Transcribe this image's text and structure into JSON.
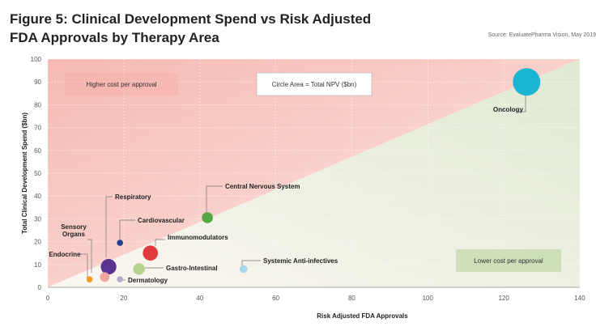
{
  "figure": {
    "title_line1": "Figure 5: Clinical Development Spend vs Risk Adjusted",
    "title_line2": "FDA Approvals by Therapy Area",
    "source": "Source: EvaluatePharma Vision, May 2019"
  },
  "chart_data": {
    "type": "scatter",
    "title": "Figure 5: Clinical Development Spend vs Risk Adjusted FDA Approvals by Therapy Area",
    "xlabel": "Risk Adjusted FDA Approvals",
    "ylabel": "Total Clinical Development Spend ($bn)",
    "xlim": [
      0,
      140
    ],
    "ylim": [
      0,
      100
    ],
    "x_ticks": [
      0,
      20,
      40,
      60,
      80,
      100,
      120,
      140
    ],
    "y_ticks": [
      0,
      10,
      20,
      30,
      40,
      50,
      60,
      70,
      80,
      90,
      100
    ],
    "size_note": "Circle Area = Total NPV ($bn)",
    "region_labels": {
      "upper_left": "Higher cost per approval",
      "lower_right": "Lower cost per approval"
    },
    "colors": {
      "upper_region": "#f8c9c4",
      "lower_region": "#e3ecd8"
    },
    "points": [
      {
        "label": "Oncology",
        "x": 126,
        "y": 90,
        "npv": 250,
        "color": "#1ab5d3"
      },
      {
        "label": "Central Nervous System",
        "x": 42,
        "y": 30.5,
        "npv": 40,
        "color": "#56a845"
      },
      {
        "label": "Respiratory",
        "x": 16,
        "y": 9,
        "npv": 80,
        "color": "#5b3390"
      },
      {
        "label": "Cardiovascular",
        "x": 19,
        "y": 19.5,
        "npv": 8,
        "color": "#1e3f8f"
      },
      {
        "label": "Immunomodulators",
        "x": 27,
        "y": 15,
        "npv": 75,
        "color": "#e03a3e"
      },
      {
        "label": "Sensory Organs",
        "x": 15,
        "y": 4.5,
        "npv": 30,
        "color": "#f0a59e"
      },
      {
        "label": "Endocrine",
        "x": 11,
        "y": 3.5,
        "npv": 8,
        "color": "#f39a24"
      },
      {
        "label": "Gastro-Intestinal",
        "x": 24,
        "y": 8,
        "npv": 45,
        "color": "#b7d18e"
      },
      {
        "label": "Dermatology",
        "x": 19,
        "y": 3.5,
        "npv": 12,
        "color": "#b6a8cc"
      },
      {
        "label": "Systemic Anti-infectives",
        "x": 51.5,
        "y": 8,
        "npv": 20,
        "color": "#a9d6ea"
      }
    ]
  }
}
